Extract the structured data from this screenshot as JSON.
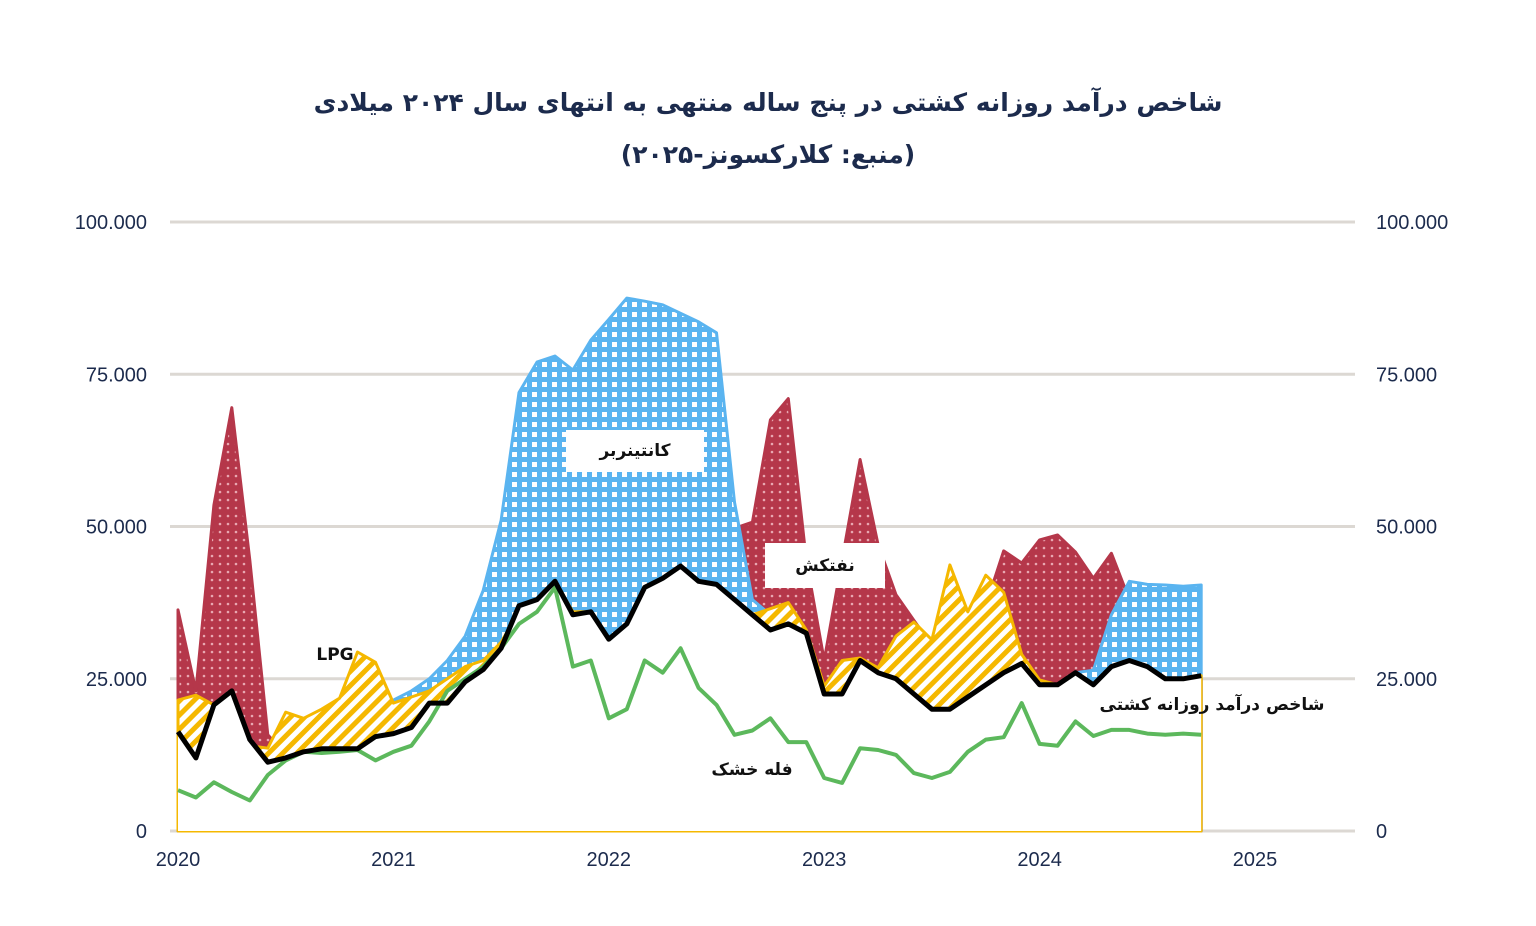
{
  "chart_data": {
    "type": "area",
    "title": "شاخص درآمد روزانه کشتی در پنج ساله منتهی به انتهای سال ۲۰۲۴ میلادی",
    "subtitle": "(منبع: کلارکسونز-۲۰۲۵)",
    "x_start": "2020-01",
    "x_frequency": "monthly",
    "x_ticks": [
      "2020",
      "2021",
      "2022",
      "2023",
      "2024",
      "2025"
    ],
    "y_ticks_left": [
      "100.000",
      "75.000",
      "50.000",
      "25.000",
      "0"
    ],
    "y_ticks_right": [
      "100.000",
      "75.000",
      "50.000",
      "25.000",
      "0"
    ],
    "ylim": [
      0,
      100000
    ],
    "grid": true,
    "series": [
      {
        "name": "نفتکش",
        "kind": "area",
        "color": "#b5374a",
        "pattern": "dots",
        "values": [
          36.3,
          23,
          53.5,
          69.5,
          44.5,
          15.8,
          12.5,
          13,
          14,
          15,
          15.3,
          15.8,
          16,
          17,
          21,
          21.5,
          24.5,
          26.5,
          30,
          37,
          38,
          41,
          35.5,
          36,
          31.5,
          34,
          40,
          41.5,
          43.5,
          42,
          43,
          49.7,
          50.7,
          67.5,
          71,
          44.5,
          28,
          44.5,
          61,
          47,
          38.8,
          34.6,
          30.5,
          30,
          28.4,
          37,
          46,
          44,
          47.8,
          48.6,
          45.8,
          41.5,
          45.6,
          38,
          33,
          27,
          25,
          25
        ]
      },
      {
        "name": "کانتینربر",
        "kind": "area",
        "color": "#5ab4f0",
        "pattern": "checker",
        "values": [
          19,
          16,
          18,
          19,
          14,
          11,
          12,
          13,
          14,
          16,
          18,
          19.5,
          21.5,
          23,
          25,
          28,
          32,
          39.5,
          51,
          72,
          77,
          78,
          75.7,
          80.6,
          84,
          87.5,
          87,
          86.4,
          85,
          83.6,
          81.8,
          54,
          38,
          35.5,
          34.6,
          33,
          23,
          22.8,
          27,
          26.8,
          26.5,
          25.8,
          24.8,
          22.8,
          22,
          24,
          26,
          27.5,
          24,
          24,
          26,
          26.4,
          35.5,
          41,
          40.5,
          40.4,
          40.2,
          40.4
        ]
      },
      {
        "name": "LPG",
        "kind": "area",
        "color": "#f5b800",
        "pattern": "stripes",
        "values": [
          21.5,
          22.3,
          20.7,
          16.6,
          14,
          13.6,
          19.5,
          18.5,
          20,
          21.8,
          29.4,
          27.7,
          21,
          22,
          23,
          25,
          27,
          28,
          31,
          36,
          38,
          41,
          36,
          36,
          31.5,
          34,
          40,
          41.5,
          43.5,
          41,
          40.5,
          38,
          35.5,
          36.5,
          37.5,
          33,
          23.8,
          28,
          28.4,
          26.8,
          32,
          34.3,
          31.4,
          43.7,
          36,
          42,
          39.2,
          29,
          24.8,
          24,
          26,
          24,
          27,
          28,
          27,
          25,
          25,
          25.5
        ]
      },
      {
        "name": "فله خشک",
        "kind": "line",
        "color": "#5cb85c",
        "values": [
          6.7,
          5.5,
          8,
          6.4,
          5,
          9.2,
          11.6,
          13,
          12.8,
          13,
          13.3,
          11.6,
          13,
          14,
          18,
          23,
          25,
          27,
          30,
          34,
          36,
          40,
          27,
          28,
          18.5,
          20,
          28,
          26,
          30,
          23.5,
          20.7,
          15.8,
          16.5,
          18.5,
          14.6,
          14.6,
          8.7,
          7.9,
          13.6,
          13.3,
          12.5,
          9.5,
          8.7,
          9.7,
          13,
          15,
          15.4,
          21,
          14.3,
          14,
          18,
          15.6,
          16.6,
          16.6,
          16,
          15.8,
          16,
          15.8
        ]
      },
      {
        "name": "شاخص درآمد روزانه کشتی",
        "kind": "line",
        "color": "#000000",
        "values": [
          16.3,
          12,
          20.7,
          23,
          15,
          11.3,
          12,
          13,
          13.5,
          13.5,
          13.5,
          15.5,
          16,
          17,
          21,
          21,
          24.5,
          26.5,
          30,
          37,
          38,
          41,
          35.5,
          36,
          31.5,
          34,
          40,
          41.5,
          43.5,
          41,
          40.5,
          38,
          35.5,
          33,
          34,
          32.5,
          22.5,
          22.5,
          28,
          26,
          25,
          22.5,
          20,
          20,
          22,
          24,
          26,
          27.5,
          24,
          24,
          26,
          24,
          27,
          28,
          27,
          25,
          25,
          25.5
        ]
      }
    ],
    "value_unit_multiplier": 1000,
    "annotations": [
      "کانتینربر",
      "نفتکش",
      "LPG",
      "فله خشک",
      "شاخص درآمد روزانه کشتی"
    ]
  }
}
